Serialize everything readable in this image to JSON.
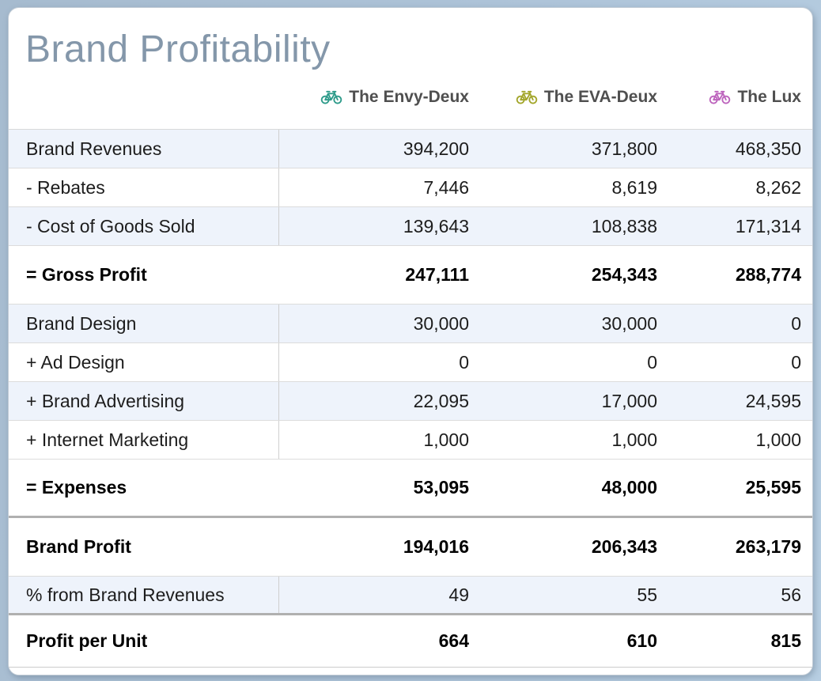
{
  "page": {
    "title": "Brand Profitability"
  },
  "colors": {
    "card_background": "#ffffff",
    "page_background": "#aec4d9",
    "title_text": "#8497aa",
    "header_text": "#4f4f4f",
    "shaded_row_background": "#eef3fb",
    "row_border": "#dcdcdc",
    "thick_separator": "#b0b0b0"
  },
  "table": {
    "columns": [
      {
        "name": "The Envy-Deux",
        "icon": "bicycle-icon",
        "icon_color": "#2e9b8a"
      },
      {
        "name": "The EVA-Deux",
        "icon": "bicycle-icon",
        "icon_color": "#a3a62b"
      },
      {
        "name": "The Lux",
        "icon": "bicycle-icon",
        "icon_color": "#bd64bd"
      }
    ],
    "rows": [
      {
        "label": "Brand Revenues",
        "values": [
          "394,200",
          "371,800",
          "468,350"
        ],
        "bold": false,
        "shaded": true
      },
      {
        "label": "- Rebates",
        "values": [
          "7,446",
          "8,619",
          "8,262"
        ],
        "bold": false,
        "shaded": false
      },
      {
        "label": "- Cost of Goods Sold",
        "values": [
          "139,643",
          "108,838",
          "171,314"
        ],
        "bold": false,
        "shaded": true
      },
      {
        "label": "= Gross Profit",
        "values": [
          "247,111",
          "254,343",
          "288,774"
        ],
        "bold": true,
        "shaded": false
      },
      {
        "label": "Brand Design",
        "values": [
          "30,000",
          "30,000",
          "0"
        ],
        "bold": false,
        "shaded": true
      },
      {
        "label": "+ Ad Design",
        "values": [
          "0",
          "0",
          "0"
        ],
        "bold": false,
        "shaded": false
      },
      {
        "label": "+ Brand Advertising",
        "values": [
          "22,095",
          "17,000",
          "24,595"
        ],
        "bold": false,
        "shaded": true
      },
      {
        "label": "+ Internet Marketing",
        "values": [
          "1,000",
          "1,000",
          "1,000"
        ],
        "bold": false,
        "shaded": false
      },
      {
        "label": "= Expenses",
        "values": [
          "53,095",
          "48,000",
          "25,595"
        ],
        "bold": true,
        "shaded": false,
        "separator_after": true
      },
      {
        "label": "Brand Profit",
        "values": [
          "194,016",
          "206,343",
          "263,179"
        ],
        "bold": true,
        "shaded": false
      },
      {
        "label": "% from Brand Revenues",
        "values": [
          "49",
          "55",
          "56"
        ],
        "bold": false,
        "shaded": true,
        "separator_after": true
      },
      {
        "label": "Profit per Unit",
        "values": [
          "664",
          "610",
          "815"
        ],
        "bold": true,
        "shaded": false,
        "last": true
      }
    ]
  }
}
